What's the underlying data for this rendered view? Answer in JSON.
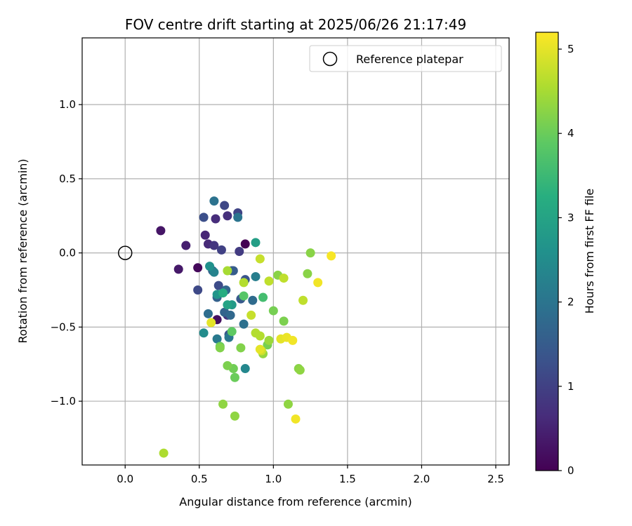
{
  "chart_data": {
    "type": "scatter",
    "title": "FOV centre drift starting at 2025/06/26 21:17:49",
    "xlabel": "Angular distance from reference (arcmin)",
    "ylabel": "Rotation from reference (arcmin)",
    "xlim": [
      -0.29,
      2.59
    ],
    "ylim": [
      -1.43,
      1.45
    ],
    "xticks": [
      0.0,
      0.5,
      1.0,
      1.5,
      2.0,
      2.5
    ],
    "xtick_labels": [
      "0.0",
      "0.5",
      "1.0",
      "1.5",
      "2.0",
      "2.5"
    ],
    "yticks": [
      -1.0,
      -0.5,
      0.0,
      0.5,
      1.0
    ],
    "ytick_labels": [
      "−1.0",
      "−0.5",
      "0.0",
      "0.5",
      "1.0"
    ],
    "grid": true,
    "legend": {
      "placement": "top-right",
      "entries": [
        "Reference platepar"
      ]
    },
    "reference_point": {
      "x": 0.0,
      "y": 0.0
    },
    "colorbar": {
      "label": "Hours from first FF file",
      "colormap": "viridis",
      "range": [
        0,
        5.2
      ],
      "ticks": [
        0,
        1,
        2,
        3,
        4,
        5
      ],
      "tick_labels": [
        "0",
        "1",
        "2",
        "3",
        "4",
        "5"
      ]
    },
    "points": [
      {
        "x": 0.81,
        "y": 0.06,
        "t": 0.0
      },
      {
        "x": 0.49,
        "y": -0.1,
        "t": 0.1
      },
      {
        "x": 0.62,
        "y": -0.45,
        "t": 0.2
      },
      {
        "x": 0.24,
        "y": 0.15,
        "t": 0.3
      },
      {
        "x": 0.36,
        "y": -0.11,
        "t": 0.35
      },
      {
        "x": 0.41,
        "y": 0.05,
        "t": 0.45
      },
      {
        "x": 0.54,
        "y": 0.12,
        "t": 0.55
      },
      {
        "x": 0.56,
        "y": 0.06,
        "t": 0.6
      },
      {
        "x": 0.61,
        "y": 0.23,
        "t": 0.65
      },
      {
        "x": 0.69,
        "y": 0.25,
        "t": 0.7
      },
      {
        "x": 0.69,
        "y": -0.42,
        "t": 0.75
      },
      {
        "x": 0.6,
        "y": 0.05,
        "t": 0.8
      },
      {
        "x": 0.77,
        "y": 0.01,
        "t": 0.9
      },
      {
        "x": 0.65,
        "y": 0.02,
        "t": 1.0
      },
      {
        "x": 0.76,
        "y": 0.27,
        "t": 1.05
      },
      {
        "x": 0.67,
        "y": 0.32,
        "t": 1.1
      },
      {
        "x": 0.49,
        "y": -0.25,
        "t": 1.15
      },
      {
        "x": 0.63,
        "y": -0.22,
        "t": 1.2
      },
      {
        "x": 0.53,
        "y": 0.24,
        "t": 1.25
      },
      {
        "x": 0.72,
        "y": -0.12,
        "t": 1.3
      },
      {
        "x": 0.81,
        "y": -0.18,
        "t": 1.35
      },
      {
        "x": 0.7,
        "y": -0.55,
        "t": 1.4
      },
      {
        "x": 0.78,
        "y": -0.31,
        "t": 1.45
      },
      {
        "x": 0.73,
        "y": -0.12,
        "t": 1.5
      },
      {
        "x": 0.59,
        "y": -0.12,
        "t": 1.55
      },
      {
        "x": 0.62,
        "y": -0.3,
        "t": 1.6
      },
      {
        "x": 0.67,
        "y": -0.4,
        "t": 1.65
      },
      {
        "x": 0.68,
        "y": -0.25,
        "t": 1.7
      },
      {
        "x": 0.71,
        "y": -0.42,
        "t": 1.75
      },
      {
        "x": 0.86,
        "y": -0.32,
        "t": 1.8
      },
      {
        "x": 0.56,
        "y": -0.41,
        "t": 1.85
      },
      {
        "x": 0.8,
        "y": -0.48,
        "t": 1.9
      },
      {
        "x": 0.6,
        "y": 0.35,
        "t": 1.95
      },
      {
        "x": 0.76,
        "y": 0.24,
        "t": 2.0
      },
      {
        "x": 0.7,
        "y": -0.57,
        "t": 2.05
      },
      {
        "x": 0.62,
        "y": -0.58,
        "t": 2.1
      },
      {
        "x": 0.88,
        "y": -0.16,
        "t": 2.2
      },
      {
        "x": 0.6,
        "y": -0.13,
        "t": 2.3
      },
      {
        "x": 0.81,
        "y": -0.78,
        "t": 2.4
      },
      {
        "x": 0.53,
        "y": -0.54,
        "t": 2.5
      },
      {
        "x": 0.57,
        "y": -0.09,
        "t": 2.6
      },
      {
        "x": 0.62,
        "y": -0.28,
        "t": 2.7
      },
      {
        "x": 0.72,
        "y": -0.35,
        "t": 2.8
      },
      {
        "x": 0.88,
        "y": 0.07,
        "t": 2.9
      },
      {
        "x": 0.69,
        "y": -0.35,
        "t": 3.0
      },
      {
        "x": 0.66,
        "y": -0.27,
        "t": 3.2
      },
      {
        "x": 0.93,
        "y": -0.3,
        "t": 3.6
      },
      {
        "x": 0.8,
        "y": -0.29,
        "t": 3.8
      },
      {
        "x": 0.72,
        "y": -0.53,
        "t": 3.9
      },
      {
        "x": 0.64,
        "y": -0.63,
        "t": 4.0
      },
      {
        "x": 0.74,
        "y": -0.84,
        "t": 4.0
      },
      {
        "x": 0.73,
        "y": -0.78,
        "t": 4.05
      },
      {
        "x": 0.96,
        "y": -0.62,
        "t": 4.1
      },
      {
        "x": 1.0,
        "y": -0.39,
        "t": 4.1
      },
      {
        "x": 1.07,
        "y": -0.46,
        "t": 4.15
      },
      {
        "x": 0.69,
        "y": -0.76,
        "t": 4.15
      },
      {
        "x": 0.64,
        "y": -0.64,
        "t": 4.2
      },
      {
        "x": 0.78,
        "y": -0.64,
        "t": 4.2
      },
      {
        "x": 1.03,
        "y": -0.15,
        "t": 4.25
      },
      {
        "x": 1.25,
        "y": 0.0,
        "t": 4.25
      },
      {
        "x": 1.23,
        "y": -0.14,
        "t": 4.25
      },
      {
        "x": 1.17,
        "y": -0.78,
        "t": 4.25
      },
      {
        "x": 0.66,
        "y": -1.02,
        "t": 4.3
      },
      {
        "x": 0.74,
        "y": -1.1,
        "t": 4.3
      },
      {
        "x": 1.1,
        "y": -1.02,
        "t": 4.3
      },
      {
        "x": 1.18,
        "y": -0.79,
        "t": 4.3
      },
      {
        "x": 0.93,
        "y": -0.68,
        "t": 4.35
      },
      {
        "x": 0.97,
        "y": -0.59,
        "t": 4.4
      },
      {
        "x": 0.69,
        "y": -0.12,
        "t": 4.5
      },
      {
        "x": 0.8,
        "y": -0.2,
        "t": 4.6
      },
      {
        "x": 0.91,
        "y": -0.56,
        "t": 4.6
      },
      {
        "x": 0.88,
        "y": -0.54,
        "t": 4.6
      },
      {
        "x": 0.26,
        "y": -1.35,
        "t": 4.55
      },
      {
        "x": 0.97,
        "y": -0.19,
        "t": 4.7
      },
      {
        "x": 1.07,
        "y": -0.17,
        "t": 4.7
      },
      {
        "x": 1.2,
        "y": -0.32,
        "t": 4.7
      },
      {
        "x": 0.85,
        "y": -0.42,
        "t": 4.75
      },
      {
        "x": 0.91,
        "y": -0.04,
        "t": 4.75
      },
      {
        "x": 0.92,
        "y": -0.66,
        "t": 4.8
      },
      {
        "x": 0.58,
        "y": -0.47,
        "t": 5.0
      },
      {
        "x": 1.05,
        "y": -0.58,
        "t": 5.0
      },
      {
        "x": 1.09,
        "y": -0.57,
        "t": 5.05
      },
      {
        "x": 1.13,
        "y": -0.59,
        "t": 5.1
      },
      {
        "x": 1.3,
        "y": -0.2,
        "t": 5.1
      },
      {
        "x": 1.15,
        "y": -1.12,
        "t": 5.1
      },
      {
        "x": 1.39,
        "y": -0.02,
        "t": 5.15
      },
      {
        "x": 0.91,
        "y": -0.65,
        "t": 5.0
      }
    ]
  }
}
